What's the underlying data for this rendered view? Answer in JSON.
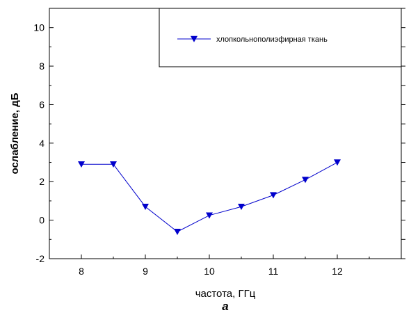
{
  "chart_data": {
    "type": "line",
    "title": "",
    "xlabel": "частота, ГГц",
    "ylabel": "ослабление, дБ",
    "panel_label": "а",
    "xlim": [
      7.5,
      13.0
    ],
    "ylim": [
      -2,
      11
    ],
    "x_ticks": [
      8,
      9,
      10,
      11,
      12
    ],
    "y_ticks": [
      -2,
      0,
      2,
      4,
      6,
      8,
      10
    ],
    "grid": false,
    "legend_position": "top-right",
    "marker": "triangle-down",
    "series_color": "#0000cc",
    "series": [
      {
        "name": "хлопкольнополиэфирная ткань",
        "x": [
          8,
          8.5,
          9,
          9.5,
          10,
          10.5,
          11,
          11.5,
          12
        ],
        "y": [
          2.9,
          2.9,
          0.7,
          -0.6,
          0.25,
          0.7,
          1.3,
          2.1,
          3.0
        ]
      }
    ]
  }
}
